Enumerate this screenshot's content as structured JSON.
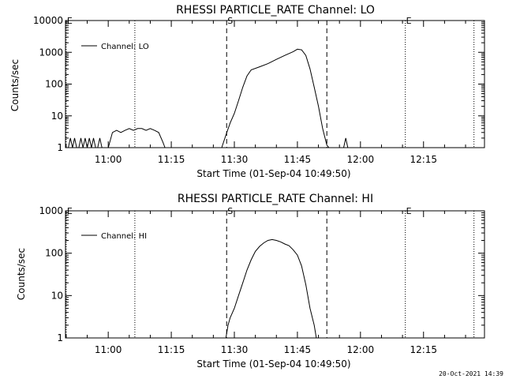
{
  "footer_timestamp": "20-Oct-2021 14:39",
  "chart_data": [
    {
      "type": "line",
      "title": "RHESSI PARTICLE_RATE Channel: LO",
      "xlabel": "Start Time (01-Sep-04 10:49:50)",
      "ylabel": "Counts/sec",
      "y_scale": "log",
      "ylim": [
        1,
        10000
      ],
      "xlim": [
        "10:49:50",
        "12:29:30"
      ],
      "x_ticks": [
        "11:00",
        "11:15",
        "11:30",
        "11:45",
        "12:00",
        "12:15"
      ],
      "y_ticks": [
        "1",
        "10",
        "100",
        "1000",
        "10000"
      ],
      "legend": {
        "label": "Channel: LO",
        "placement": "top-left"
      },
      "markers": [
        {
          "label": "E",
          "time": "10:50:00",
          "style": "dotted"
        },
        {
          "label": "",
          "time": "11:06:20",
          "style": "dotted"
        },
        {
          "label": "S",
          "time": "11:28:10",
          "style": "dashed"
        },
        {
          "label": "",
          "time": "11:52:00",
          "style": "dashed"
        },
        {
          "label": "E",
          "time": "12:10:40",
          "style": "dotted"
        },
        {
          "label": "",
          "time": "12:27:00",
          "style": "dotted"
        }
      ],
      "series": [
        {
          "name": "Channel: LO",
          "points": [
            [
              "10:50:30",
              1
            ],
            [
              "10:51:00",
              2
            ],
            [
              "10:51:30",
              1
            ],
            [
              "10:52:00",
              2
            ],
            [
              "10:52:30",
              1
            ],
            [
              "10:53:00",
              1
            ],
            [
              "10:53:30",
              2
            ],
            [
              "10:54:00",
              1
            ],
            [
              "10:54:30",
              2
            ],
            [
              "10:55:00",
              1
            ],
            [
              "10:55:30",
              2
            ],
            [
              "10:56:00",
              1
            ],
            [
              "10:56:30",
              2
            ],
            [
              "10:57:00",
              1
            ],
            [
              "10:57:30",
              1
            ],
            [
              "10:58:00",
              2
            ],
            [
              "10:58:30",
              1
            ],
            [
              "10:59:00",
              1
            ],
            [
              "11:00:00",
              1
            ],
            [
              "11:01:00",
              3
            ],
            [
              "11:02:00",
              3.5
            ],
            [
              "11:03:00",
              3
            ],
            [
              "11:04:00",
              3.5
            ],
            [
              "11:05:00",
              4
            ],
            [
              "11:06:00",
              3.5
            ],
            [
              "11:07:00",
              4
            ],
            [
              "11:08:00",
              4
            ],
            [
              "11:09:00",
              3.5
            ],
            [
              "11:10:00",
              4
            ],
            [
              "11:11:00",
              3.5
            ],
            [
              "11:12:00",
              3
            ],
            [
              "11:13:00",
              1.5
            ],
            [
              "11:13:30",
              1
            ],
            [
              "11:27:00",
              1
            ],
            [
              "11:28:00",
              2.5
            ],
            [
              "11:29:00",
              6
            ],
            [
              "11:30:00",
              12
            ],
            [
              "11:31:00",
              30
            ],
            [
              "11:32:00",
              80
            ],
            [
              "11:33:00",
              180
            ],
            [
              "11:34:00",
              280
            ],
            [
              "11:36:00",
              350
            ],
            [
              "11:38:00",
              440
            ],
            [
              "11:40:00",
              600
            ],
            [
              "11:42:00",
              800
            ],
            [
              "11:44:00",
              1050
            ],
            [
              "11:45:00",
              1250
            ],
            [
              "11:46:00",
              1200
            ],
            [
              "11:47:00",
              800
            ],
            [
              "11:48:00",
              300
            ],
            [
              "11:49:00",
              80
            ],
            [
              "11:50:00",
              20
            ],
            [
              "11:51:00",
              4
            ],
            [
              "11:52:00",
              1.2
            ],
            [
              "11:52:30",
              1
            ],
            [
              "11:56:00",
              1
            ],
            [
              "11:56:30",
              2
            ],
            [
              "11:57:00",
              1
            ]
          ]
        }
      ]
    },
    {
      "type": "line",
      "title": "RHESSI PARTICLE_RATE Channel: HI",
      "xlabel": "Start Time (01-Sep-04 10:49:50)",
      "ylabel": "Counts/sec",
      "y_scale": "log",
      "ylim": [
        1,
        1000
      ],
      "xlim": [
        "10:49:50",
        "12:29:30"
      ],
      "x_ticks": [
        "11:00",
        "11:15",
        "11:30",
        "11:45",
        "12:00",
        "12:15"
      ],
      "y_ticks": [
        "1",
        "10",
        "100",
        "1000"
      ],
      "legend": {
        "label": "Channel: HI",
        "placement": "top-left"
      },
      "markers": [
        {
          "label": "E",
          "time": "10:50:00",
          "style": "dotted"
        },
        {
          "label": "",
          "time": "11:06:20",
          "style": "dotted"
        },
        {
          "label": "S",
          "time": "11:28:10",
          "style": "dashed"
        },
        {
          "label": "",
          "time": "11:52:00",
          "style": "dashed"
        },
        {
          "label": "E",
          "time": "12:10:40",
          "style": "dotted"
        },
        {
          "label": "",
          "time": "12:27:00",
          "style": "dotted"
        }
      ],
      "series": [
        {
          "name": "Channel: HI",
          "points": [
            [
              "11:28:00",
              1
            ],
            [
              "11:28:30",
              2
            ],
            [
              "11:29:00",
              3
            ],
            [
              "11:30:00",
              5
            ],
            [
              "11:31:00",
              10
            ],
            [
              "11:32:00",
              20
            ],
            [
              "11:33:00",
              40
            ],
            [
              "11:34:00",
              70
            ],
            [
              "11:35:00",
              110
            ],
            [
              "11:36:00",
              145
            ],
            [
              "11:37:00",
              175
            ],
            [
              "11:38:00",
              200
            ],
            [
              "11:39:00",
              210
            ],
            [
              "11:40:00",
              200
            ],
            [
              "11:41:00",
              185
            ],
            [
              "11:42:00",
              165
            ],
            [
              "11:43:00",
              150
            ],
            [
              "11:44:00",
              120
            ],
            [
              "11:45:00",
              90
            ],
            [
              "11:46:00",
              50
            ],
            [
              "11:47:00",
              18
            ],
            [
              "11:48:00",
              5
            ],
            [
              "11:49:00",
              2
            ],
            [
              "11:49:30",
              1
            ]
          ]
        }
      ]
    }
  ]
}
